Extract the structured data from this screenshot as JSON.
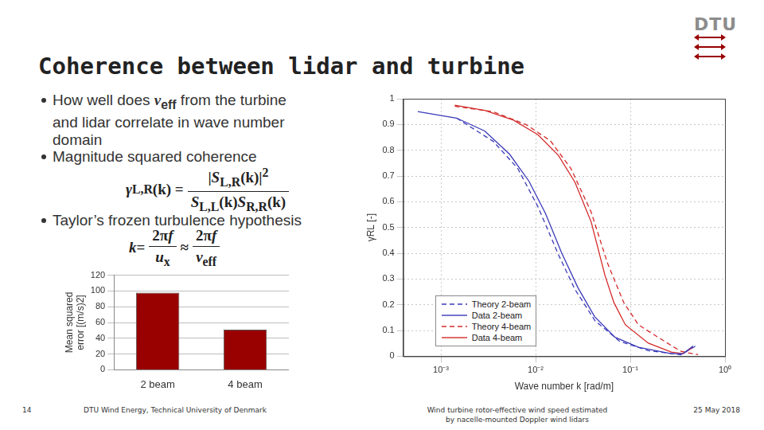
{
  "slide": {
    "title": "Coherence between lidar and turbine",
    "logo": "DTU",
    "bullets": [
      {
        "parts": [
          {
            "t": "How well does "
          },
          {
            "v": "v",
            "sub": "eff"
          },
          {
            "t": " from the turbine and lidar correlate in wave number domain"
          }
        ]
      },
      {
        "parts": [
          {
            "t": "Magnitude squared coherence"
          }
        ],
        "formula": [
          {
            "v": "γ",
            "sub": "L,R"
          },
          {
            "t": "(k) = "
          },
          {
            "frac": {
              "num": [
                {
                  "t": "|"
                },
                {
                  "v": "S",
                  "sub": "L,R"
                },
                {
                  "t": "(k)|"
                },
                {
                  "sup": "2"
                }
              ],
              "den": [
                {
                  "v": "S",
                  "sub": "L,L"
                },
                {
                  "t": "(k)"
                },
                {
                  "v": "S",
                  "sub": "R,R"
                },
                {
                  "t": "(k)"
                }
              ]
            }
          }
        ]
      },
      {
        "parts": [
          {
            "t": "Taylor’s frozen turbulence hypothesis"
          }
        ],
        "formula": [
          {
            "v": "k"
          },
          {
            "t": " = "
          },
          {
            "frac": {
              "num": [
                {
                  "t": "2π"
                },
                {
                  "v": "f"
                }
              ],
              "den": [
                {
                  "v": "u",
                  "sub": "x"
                }
              ]
            }
          },
          {
            "t": " ≈ "
          },
          {
            "frac": {
              "num": [
                {
                  "t": "2π"
                },
                {
                  "v": "f"
                }
              ],
              "den": [
                {
                  "v": "v",
                  "sub": "eff"
                }
              ]
            }
          }
        ]
      }
    ],
    "footer": {
      "page": "14",
      "org": "DTU Wind Energy, Technical University of Denmark",
      "subject": [
        "Wind turbine rotor-effective wind speed estimated",
        "by nacelle-mounted Doppler wind lidars"
      ],
      "date": "25 May 2018"
    }
  },
  "chart_data": [
    {
      "type": "bar",
      "categories": [
        "2 beam",
        "4 beam"
      ],
      "values": [
        98,
        51
      ],
      "color": "#990000",
      "ylabel": [
        "Mean squared",
        "error [(m/s)2]"
      ],
      "ylim": [
        0,
        120
      ],
      "yticks": [
        0,
        20,
        40,
        60,
        80,
        100,
        120
      ],
      "grid": true
    },
    {
      "type": "line",
      "xlabel": "Wave number k [rad/m]",
      "ylabel": "γRL [-]",
      "log": "x",
      "xlim": [
        0.0004,
        1
      ],
      "xticks": [
        {
          "value": 0.001,
          "label": "10⁻³"
        },
        {
          "value": 0.01,
          "label": "10⁻²"
        },
        {
          "value": 0.1,
          "label": "10⁻¹"
        },
        {
          "value": 1,
          "label": "10⁰"
        }
      ],
      "ylim": [
        0,
        1
      ],
      "yticks": [
        0,
        0.1,
        0.2,
        0.3,
        0.4,
        0.5,
        0.6,
        0.7,
        0.8,
        0.9,
        1
      ],
      "grid": true,
      "legend": "lower left",
      "series": [
        {
          "name": "Theory 2-beam",
          "color": "#3a3ab8",
          "line_style": "dashed",
          "x": [
            0.00146,
            0.00356,
            0.00646,
            0.0106,
            0.0174,
            0.026,
            0.0424,
            0.0773,
            0.155,
            0.342,
            0.49
          ],
          "values": [
            0.925,
            0.835,
            0.73,
            0.58,
            0.395,
            0.26,
            0.138,
            0.058,
            0.022,
            0.006,
            0.04
          ]
        },
        {
          "name": "Data 2-beam",
          "color": "#3a3ab8",
          "line_style": "solid",
          "x": [
            0.00057,
            0.00146,
            0.0029,
            0.0053,
            0.0085,
            0.0127,
            0.0189,
            0.028,
            0.042,
            0.0686,
            0.122,
            0.271,
            0.36,
            0.46
          ],
          "values": [
            0.95,
            0.925,
            0.875,
            0.785,
            0.68,
            0.555,
            0.4,
            0.266,
            0.154,
            0.074,
            0.035,
            0.01,
            0.01,
            0.04
          ]
        },
        {
          "name": "Theory 4-beam",
          "color": "#d42a2a",
          "line_style": "dashed",
          "x": [
            0.0014,
            0.0036,
            0.0079,
            0.0143,
            0.0235,
            0.0386,
            0.0574,
            0.0854,
            0.122,
            0.23,
            0.342,
            0.52
          ],
          "values": [
            0.971,
            0.949,
            0.9,
            0.837,
            0.73,
            0.56,
            0.362,
            0.208,
            0.122,
            0.058,
            0.019,
            0.006
          ]
        },
        {
          "name": "Data 4-beam",
          "color": "#d42a2a",
          "line_style": "solid",
          "x": [
            0.0014,
            0.0029,
            0.00585,
            0.0106,
            0.0174,
            0.026,
            0.0386,
            0.054,
            0.0672,
            0.0887,
            0.155,
            0.271,
            0.36,
            0.46
          ],
          "values": [
            0.975,
            0.955,
            0.917,
            0.86,
            0.78,
            0.676,
            0.522,
            0.314,
            0.208,
            0.122,
            0.051,
            0.016,
            0.01,
            0.035
          ]
        }
      ]
    }
  ]
}
